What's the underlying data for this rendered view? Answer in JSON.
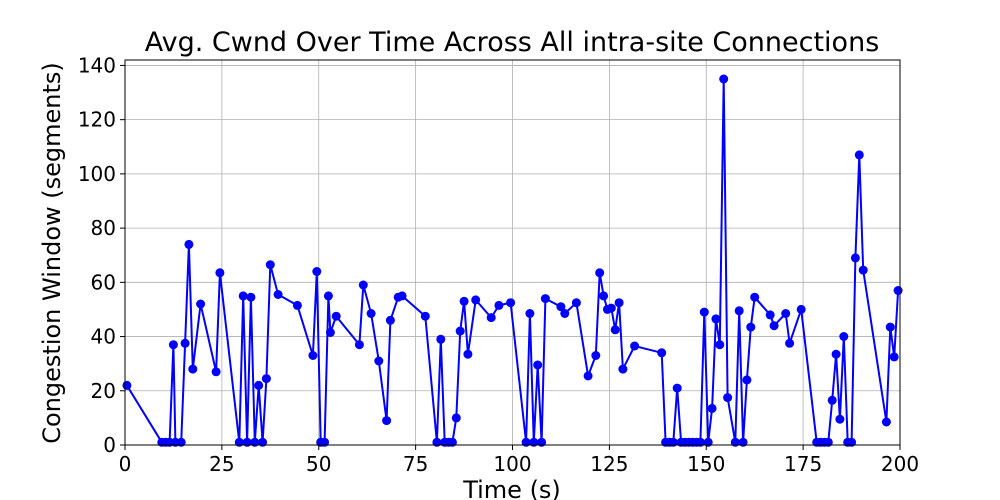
{
  "chart_data": {
    "type": "line",
    "title": "Avg. Cwnd Over Time Across All intra-site Connections",
    "xlabel": "Time (s)",
    "ylabel": "Congestion Window (segments)",
    "xlim": [
      0,
      200
    ],
    "ylim": [
      0,
      142
    ],
    "xticks": [
      0,
      25,
      50,
      75,
      100,
      125,
      150,
      175,
      200
    ],
    "yticks": [
      0,
      20,
      40,
      60,
      80,
      100,
      120,
      140
    ],
    "grid": true,
    "legend": "none",
    "series": [
      {
        "color": "#0000ff",
        "marker": "circle",
        "points": [
          [
            0.5,
            22
          ],
          [
            9.5,
            1
          ],
          [
            10.5,
            1
          ],
          [
            11.5,
            1
          ],
          [
            12.5,
            37
          ],
          [
            13,
            1
          ],
          [
            14.5,
            1
          ],
          [
            15.5,
            37.5
          ],
          [
            16.5,
            74
          ],
          [
            17.5,
            28
          ],
          [
            19.5,
            52
          ],
          [
            23.5,
            27
          ],
          [
            24.5,
            63.5
          ],
          [
            29.5,
            1
          ],
          [
            30.5,
            55
          ],
          [
            31.5,
            1
          ],
          [
            32.5,
            54.5
          ],
          [
            33.5,
            1
          ],
          [
            34.5,
            22
          ],
          [
            35.5,
            1
          ],
          [
            36.5,
            24.5
          ],
          [
            37.5,
            66.5
          ],
          [
            39.5,
            55.5
          ],
          [
            44.5,
            51.5
          ],
          [
            48.5,
            33
          ],
          [
            49.5,
            64
          ],
          [
            50.5,
            1
          ],
          [
            51.5,
            1
          ],
          [
            52.5,
            55
          ],
          [
            53,
            41.5
          ],
          [
            54.5,
            47.5
          ],
          [
            60.5,
            37
          ],
          [
            61.5,
            59
          ],
          [
            63.5,
            48.5
          ],
          [
            65.5,
            31
          ],
          [
            67.5,
            9
          ],
          [
            68.5,
            46
          ],
          [
            70.5,
            54.5
          ],
          [
            71.5,
            55
          ],
          [
            77.5,
            47.5
          ],
          [
            80.5,
            1
          ],
          [
            81.5,
            39
          ],
          [
            82.5,
            1
          ],
          [
            83.5,
            1
          ],
          [
            84.5,
            1
          ],
          [
            85.5,
            10
          ],
          [
            86.5,
            42
          ],
          [
            87.5,
            53
          ],
          [
            88.5,
            33.5
          ],
          [
            90.5,
            53.5
          ],
          [
            94.5,
            47
          ],
          [
            96.5,
            51.5
          ],
          [
            99.5,
            52.5
          ],
          [
            103.5,
            1
          ],
          [
            104.5,
            48.5
          ],
          [
            105.5,
            1
          ],
          [
            106.5,
            29.5
          ],
          [
            107.5,
            1
          ],
          [
            108.5,
            54
          ],
          [
            112.5,
            51
          ],
          [
            113.5,
            48.5
          ],
          [
            116.5,
            52.5
          ],
          [
            119.5,
            25.5
          ],
          [
            121.5,
            33
          ],
          [
            122.5,
            63.5
          ],
          [
            123.5,
            55
          ],
          [
            124.5,
            50
          ],
          [
            125.5,
            50.5
          ],
          [
            126.5,
            42.5
          ],
          [
            127.5,
            52.5
          ],
          [
            128.5,
            28
          ],
          [
            131.5,
            36.5
          ],
          [
            138.5,
            34
          ],
          [
            139.5,
            1
          ],
          [
            140.5,
            1
          ],
          [
            141.5,
            1
          ],
          [
            142.5,
            21
          ],
          [
            143.5,
            1
          ],
          [
            144.5,
            1
          ],
          [
            145.5,
            1
          ],
          [
            146.5,
            1
          ],
          [
            147.5,
            1
          ],
          [
            148.5,
            1
          ],
          [
            149.5,
            49
          ],
          [
            150.5,
            1
          ],
          [
            151.5,
            13.5
          ],
          [
            152.5,
            46.5
          ],
          [
            153.5,
            37
          ],
          [
            154.5,
            135
          ],
          [
            155.5,
            17.5
          ],
          [
            157.5,
            1
          ],
          [
            158.5,
            49.5
          ],
          [
            159.5,
            1
          ],
          [
            160.5,
            24
          ],
          [
            161.5,
            43.5
          ],
          [
            162.5,
            54.5
          ],
          [
            166.5,
            48
          ],
          [
            167.5,
            44
          ],
          [
            170.5,
            48.5
          ],
          [
            171.5,
            37.5
          ],
          [
            174.5,
            50
          ],
          [
            178.5,
            1
          ],
          [
            179.5,
            1
          ],
          [
            180.5,
            1
          ],
          [
            181.5,
            1
          ],
          [
            182.5,
            16.5
          ],
          [
            183.5,
            33.5
          ],
          [
            184.5,
            9.5
          ],
          [
            185.5,
            40
          ],
          [
            186.5,
            1
          ],
          [
            187.5,
            1
          ],
          [
            188.5,
            69
          ],
          [
            189.5,
            107
          ],
          [
            190.5,
            64.5
          ],
          [
            196.5,
            8.5
          ],
          [
            197.5,
            43.5
          ],
          [
            198.5,
            32.5
          ],
          [
            199.5,
            57
          ]
        ]
      }
    ]
  }
}
